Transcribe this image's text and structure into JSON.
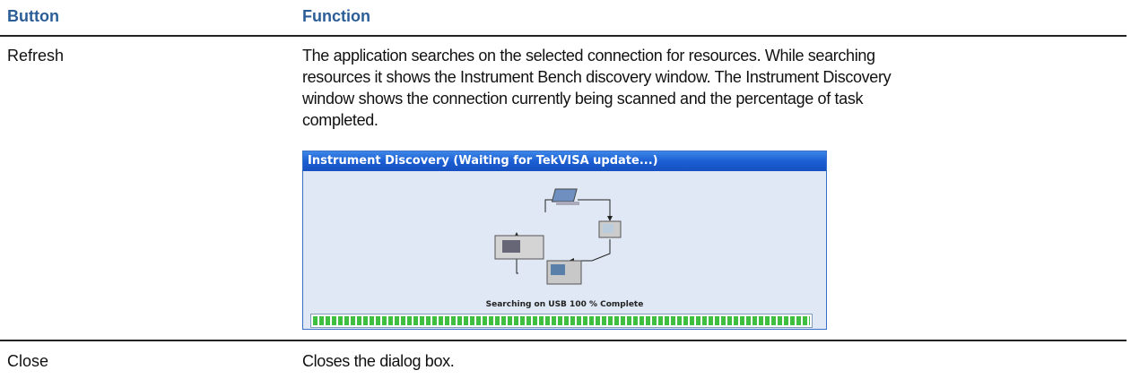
{
  "table": {
    "header": [
      "Button",
      "Function"
    ],
    "rows": [
      {
        "button": "Refresh",
        "function": [
          "The application searches on the selected connection for resources.  While searching",
          "resources it shows the Instrument Bench discovery window. The Instrument Discovery",
          "window shows the connection currently being scanned and the percentage of task",
          "completed."
        ],
        "window": {
          "title": "Instrument Discovery (Waiting for TekVISA update...)",
          "status": "Searching on USB 100 % Complete"
        }
      },
      {
        "button": "Close",
        "function": [
          "Closes the dialog box."
        ]
      }
    ]
  }
}
